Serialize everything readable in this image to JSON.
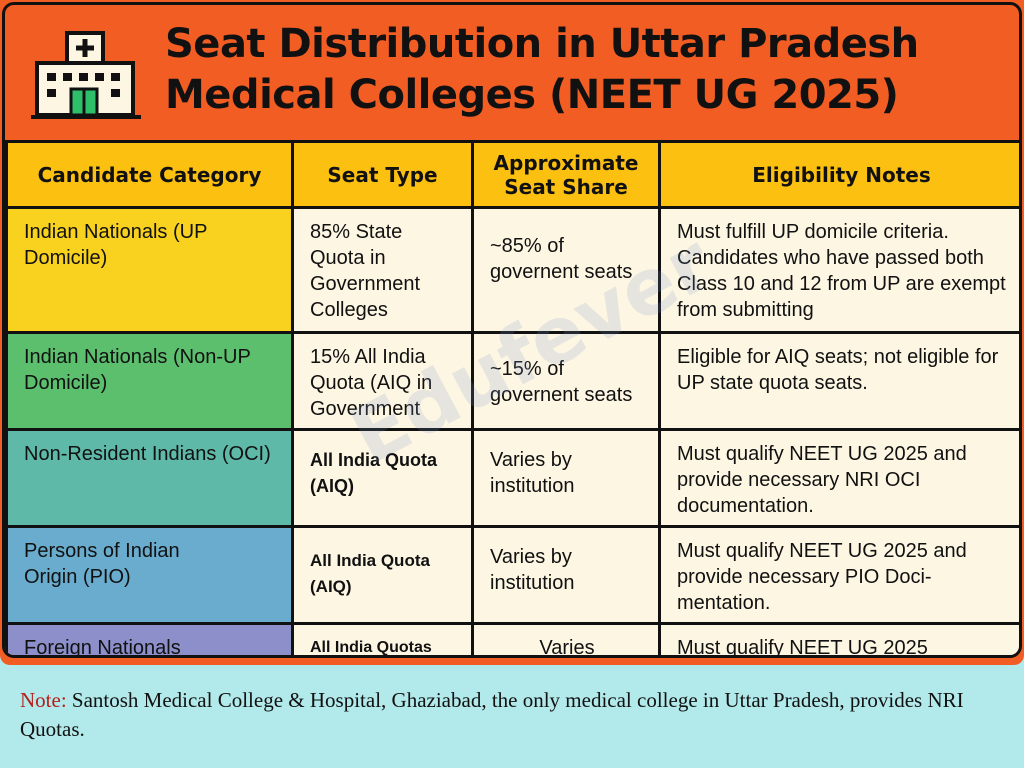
{
  "title": "Seat Distribution in Uttar Pradesh Medical Colleges (NEET UG 2025)",
  "title_lines": [
    "Seat Distribution in Uttar Pradesh",
    "Medical Colleges (NEET UG 2025)"
  ],
  "icon": "hospital-icon",
  "watermark": "Edufever",
  "colors": {
    "title_bg": "#f25d24",
    "header_bg": "#fcc010",
    "cell_bg": "#fdf6e3",
    "note_bg": "#b2e9ea",
    "note_label": "#b3201c"
  },
  "columns": [
    "Candidate Category",
    "Seat Type",
    "Approximate Seat Share",
    "Eligibility Notes"
  ],
  "rows": [
    {
      "category": "Indian Nationals (UP Domicile)",
      "seat_type": "85% State Quota in Government Colleges",
      "share": "~85% of governent seats",
      "notes": "Must fulfill UP domicile criteria. Candidates who have passed both Class 10 and 12 from UP are exempt from submitting",
      "color": "#f8d21f"
    },
    {
      "category": "Indian Nationals (Non-UP Domicile)",
      "seat_type": "15% All India Quota (AIQ in Government",
      "share": "~15% of governent seats",
      "notes": "Eligible for AIQ seats; not eligible for UP state quota seats.",
      "color": "#5cbf6e"
    },
    {
      "category": "Non-Resident Indians (OCI)",
      "seat_type": "All India Quota (AIQ)",
      "share": "Varies by institution",
      "notes": "Must qualify NEET UG 2025 and provide necessary NRI OCI documentation.",
      "color": "#5fb9a9"
    },
    {
      "category": "Persons of Indian Origin (PIO)",
      "seat_type": "All India Quota (AIQ)",
      "share": "Varies by institution",
      "notes": "Must qualify NEET UG 2025 and provide necessary PIO Doci-mentation.",
      "color": "#6aaccd"
    },
    {
      "category": "Foreign Nationals",
      "seat_type": "All India Quotas",
      "share": "Varies",
      "notes": "Must qualify NEET UG 2025",
      "color": "#8c8fca"
    }
  ],
  "note": {
    "label": "Note:",
    "text": " Santosh Medical College & Hospital, Ghaziabad, the only medical college in Uttar Pradesh, provides NRI Quotas."
  }
}
